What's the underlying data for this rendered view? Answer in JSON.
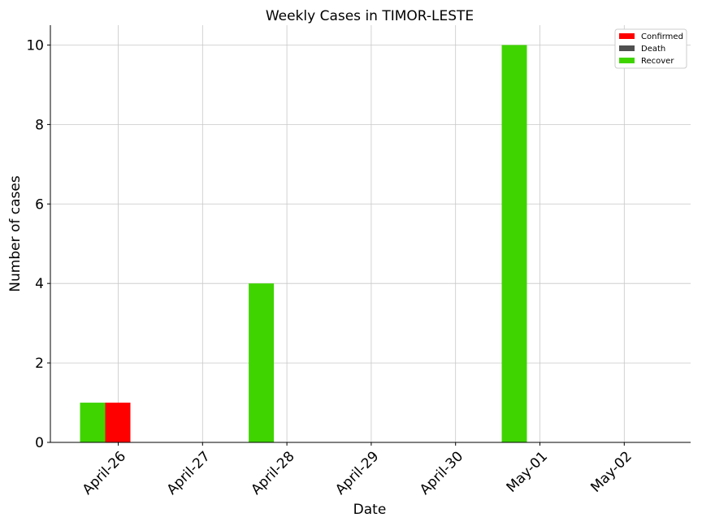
{
  "chart_data": {
    "type": "bar",
    "title": "Weekly Cases in TIMOR-LESTE",
    "xlabel": "Date",
    "ylabel": "Number of cases",
    "categories": [
      "April-26",
      "April-27",
      "April-28",
      "April-29",
      "April-30",
      "May-01",
      "May-02"
    ],
    "series": [
      {
        "name": "Confirmed",
        "color": "#ff0000",
        "values": [
          1,
          0,
          0,
          0,
          0,
          0,
          0
        ]
      },
      {
        "name": "Death",
        "color": "#505050",
        "values": [
          0,
          0,
          0,
          0,
          0,
          0,
          0
        ]
      },
      {
        "name": "Recover",
        "color": "#3fd400",
        "values": [
          1,
          0,
          4,
          0,
          0,
          10,
          0
        ]
      }
    ],
    "ylim": [
      0,
      10.5
    ],
    "yticks": [
      0,
      2,
      4,
      6,
      8,
      10
    ],
    "grid": true,
    "legend_position": "top-right"
  }
}
